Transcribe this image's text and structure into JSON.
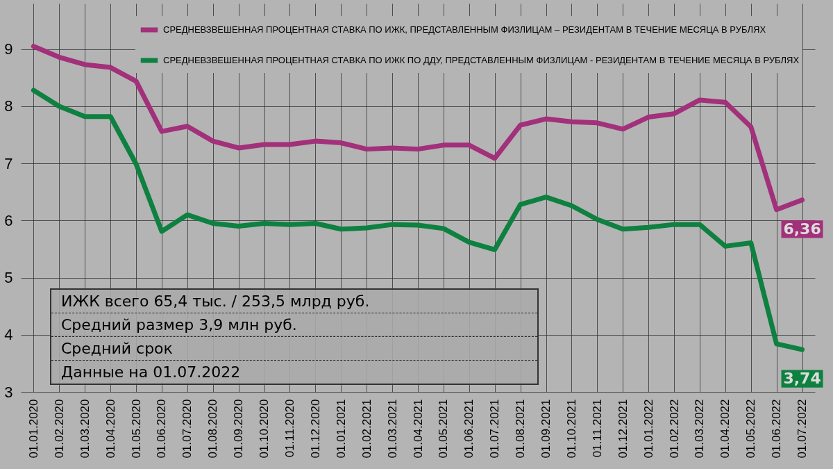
{
  "chart_data": {
    "type": "line",
    "categories": [
      "01.01.2020",
      "01.02.2020",
      "01.03.2020",
      "01.04.2020",
      "01.05.2020",
      "01.06.2020",
      "01.07.2020",
      "01.08.2020",
      "01.09.2020",
      "01.10.2020",
      "01.11.2020",
      "01.12.2020",
      "01.01.2021",
      "01.02.2021",
      "01.03.2021",
      "01.04.2021",
      "01.05.2021",
      "01.06.2021",
      "01.07.2021",
      "01.08.2021",
      "01.09.2021",
      "01.10.2021",
      "01.11.2021",
      "01.12.2021",
      "01.01.2022",
      "01.02.2022",
      "01.03.2022",
      "01.04.2022",
      "01.05.2022",
      "01.06.2022",
      "01.07.2022"
    ],
    "series": [
      {
        "name": "СРЕДНЕВЗВЕШЕННАЯ ПРОЦЕНТНАЯ СТАВКА ПО ИЖК, ПРЕДСТАВЛЕННЫМ ФИЗЛИЦАМ – РЕЗИДЕНТАМ В ТЕЧЕНИЕ МЕСЯЦА В РУБЛЯХ",
        "color": "#a2307a",
        "values": [
          9.05,
          8.86,
          8.73,
          8.68,
          8.44,
          7.56,
          7.65,
          7.39,
          7.27,
          7.33,
          7.33,
          7.39,
          7.36,
          7.25,
          7.27,
          7.25,
          7.32,
          7.32,
          7.09,
          7.67,
          7.78,
          7.73,
          7.71,
          7.6,
          7.81,
          7.87,
          8.11,
          8.07,
          7.64,
          6.19,
          6.36
        ],
        "value_labels": [
          null,
          null,
          null,
          null,
          null,
          null,
          null,
          null,
          null,
          null,
          null,
          null,
          null,
          null,
          null,
          null,
          null,
          null,
          null,
          null,
          null,
          null,
          null,
          null,
          null,
          null,
          null,
          null,
          null,
          null,
          "6,36"
        ]
      },
      {
        "name": "СРЕДНЕВЗВЕШЕННАЯ ПРОЦЕНТНАЯ СТАВКА ПО ИЖК ПО ДДУ, ПРЕДСТАВЛЕННЫМ ФИЗЛИЦАМ - РЕЗИДЕНТАМ В ТЕЧЕНИЕ МЕСЯЦА В РУБЛЯХ",
        "color": "#0e8040",
        "values": [
          8.28,
          8.0,
          7.82,
          7.82,
          6.99,
          5.81,
          6.1,
          5.95,
          5.9,
          5.95,
          5.93,
          5.95,
          5.85,
          5.87,
          5.93,
          5.92,
          5.86,
          5.62,
          5.49,
          6.28,
          6.41,
          6.26,
          6.02,
          5.85,
          5.88,
          5.93,
          5.93,
          5.55,
          5.61,
          3.84,
          3.74
        ],
        "value_labels": [
          null,
          null,
          null,
          null,
          null,
          null,
          null,
          null,
          null,
          null,
          null,
          null,
          null,
          null,
          null,
          null,
          null,
          null,
          null,
          null,
          null,
          null,
          null,
          null,
          null,
          null,
          null,
          null,
          null,
          null,
          "3,74"
        ]
      }
    ],
    "ylim": [
      3,
      9.8
    ],
    "yticks": [
      3,
      4,
      5,
      6,
      7,
      8,
      9
    ],
    "grid": true,
    "legend": "top right",
    "marker": "none",
    "line_style": "solid",
    "annotations": [
      "ИЖК всего 65,4 тыс. / 253,5 млрд руб.",
      "Средний размер 3,9 млн руб.",
      "Средний срок",
      "Данные на 01.07.2022"
    ]
  }
}
